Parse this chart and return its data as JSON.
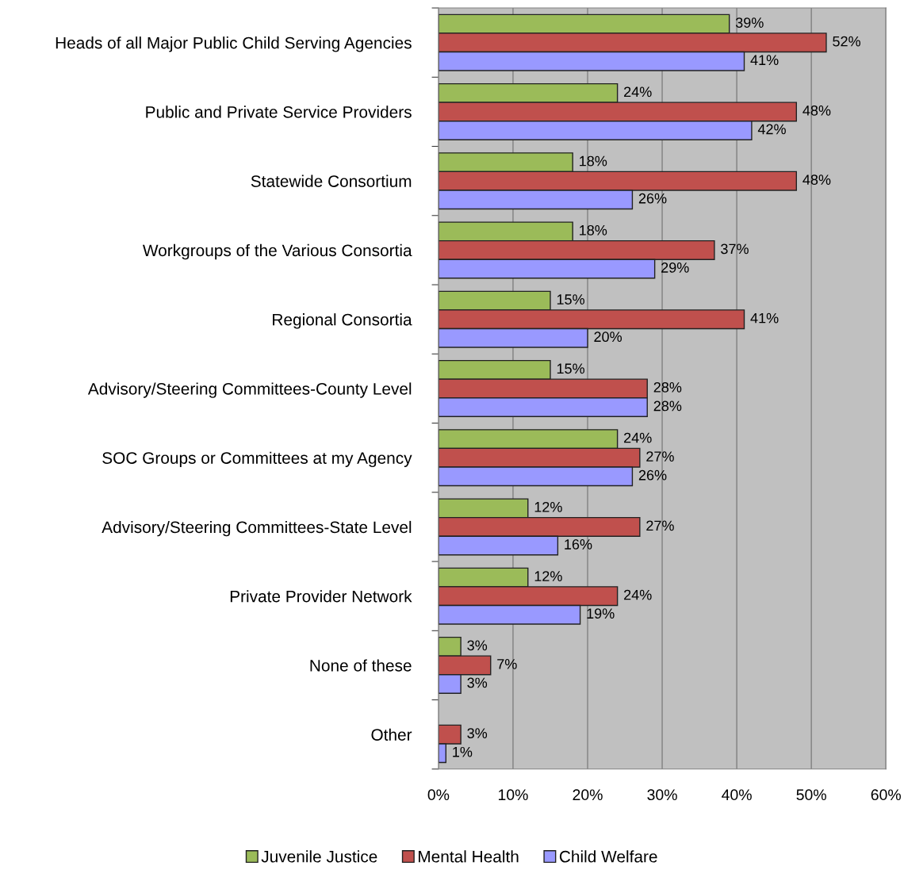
{
  "chart_data": {
    "type": "bar",
    "orientation": "horizontal",
    "categories": [
      "Heads of all Major Public Child Serving Agencies",
      "Public and Private Service Providers",
      "Statewide Consortium",
      "Workgroups of the Various Consortia",
      "Regional Consortia",
      "Advisory/Steering Committees-County Level",
      "SOC Groups or Committees at my Agency",
      "Advisory/Steering Committees-State Level",
      "Private Provider Network",
      "None of these",
      "Other"
    ],
    "series": [
      {
        "name": "Juvenile Justice",
        "color": "#9bbb59",
        "values": [
          39,
          24,
          18,
          18,
          15,
          15,
          24,
          12,
          12,
          3,
          null
        ],
        "value_labels": [
          "39%",
          "24%",
          "18%",
          "18%",
          "15%",
          "15%",
          "24%",
          "12%",
          "12%",
          "3%",
          null
        ]
      },
      {
        "name": "Mental Health",
        "color": "#c0504d",
        "values": [
          52,
          48,
          48,
          37,
          41,
          28,
          27,
          27,
          24,
          7,
          3
        ],
        "value_labels": [
          "52%",
          "48%",
          "48%",
          "37%",
          "41%",
          "28%",
          "27%",
          "27%",
          "24%",
          "7%",
          "3%"
        ]
      },
      {
        "name": "Child Welfare",
        "color": "#9999ff",
        "values": [
          41,
          42,
          26,
          29,
          20,
          28,
          26,
          16,
          19,
          3,
          1
        ],
        "value_labels": [
          "41%",
          "42%",
          "26%",
          "29%",
          "20%",
          "28%",
          "26%",
          "16%",
          "19%",
          "3%",
          "1%"
        ]
      }
    ],
    "xlim": [
      0,
      60
    ],
    "xticks": [
      {
        "value": 0,
        "label": "0%"
      },
      {
        "value": 10,
        "label": "10%"
      },
      {
        "value": 20,
        "label": "20%"
      },
      {
        "value": 30,
        "label": "30%"
      },
      {
        "value": 40,
        "label": "40%"
      },
      {
        "value": 50,
        "label": "50%"
      },
      {
        "value": 60,
        "label": "60%"
      }
    ],
    "grid": "x",
    "legend": "bottom"
  }
}
